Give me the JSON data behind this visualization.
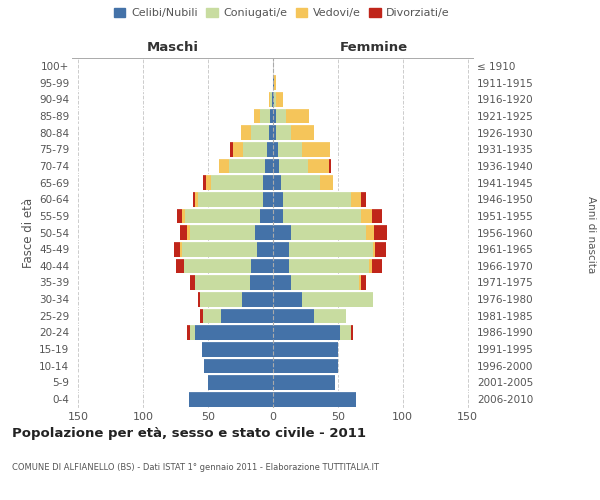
{
  "age_groups": [
    "0-4",
    "5-9",
    "10-14",
    "15-19",
    "20-24",
    "25-29",
    "30-34",
    "35-39",
    "40-44",
    "45-49",
    "50-54",
    "55-59",
    "60-64",
    "65-69",
    "70-74",
    "75-79",
    "80-84",
    "85-89",
    "90-94",
    "95-99",
    "100+"
  ],
  "birth_years": [
    "2006-2010",
    "2001-2005",
    "1996-2000",
    "1991-1995",
    "1986-1990",
    "1981-1985",
    "1976-1980",
    "1971-1975",
    "1966-1970",
    "1961-1965",
    "1956-1960",
    "1951-1955",
    "1946-1950",
    "1941-1945",
    "1936-1940",
    "1931-1935",
    "1926-1930",
    "1921-1925",
    "1916-1920",
    "1911-1915",
    "≤ 1910"
  ],
  "maschi": {
    "celibi": [
      65,
      50,
      53,
      55,
      60,
      40,
      24,
      18,
      17,
      12,
      14,
      10,
      8,
      8,
      6,
      5,
      3,
      2,
      1,
      0,
      0
    ],
    "coniugati": [
      0,
      0,
      0,
      0,
      4,
      14,
      32,
      42,
      52,
      58,
      50,
      58,
      50,
      40,
      28,
      18,
      14,
      8,
      1,
      0,
      0
    ],
    "vedovi": [
      0,
      0,
      0,
      0,
      0,
      0,
      0,
      0,
      0,
      2,
      2,
      2,
      2,
      4,
      8,
      8,
      8,
      5,
      1,
      0,
      0
    ],
    "divorziati": [
      0,
      0,
      0,
      0,
      2,
      2,
      2,
      4,
      6,
      4,
      6,
      4,
      2,
      2,
      0,
      2,
      0,
      0,
      0,
      0,
      0
    ]
  },
  "femmine": {
    "nubili": [
      64,
      48,
      50,
      50,
      52,
      32,
      22,
      14,
      12,
      12,
      14,
      8,
      8,
      6,
      5,
      4,
      2,
      2,
      1,
      1,
      0
    ],
    "coniugate": [
      0,
      0,
      0,
      0,
      8,
      24,
      55,
      52,
      62,
      65,
      58,
      60,
      52,
      30,
      22,
      18,
      12,
      8,
      1,
      0,
      0
    ],
    "vedove": [
      0,
      0,
      0,
      0,
      0,
      0,
      0,
      2,
      2,
      2,
      6,
      8,
      8,
      10,
      16,
      22,
      18,
      18,
      6,
      1,
      0
    ],
    "divorziate": [
      0,
      0,
      0,
      0,
      2,
      0,
      0,
      4,
      8,
      8,
      10,
      8,
      4,
      0,
      2,
      0,
      0,
      0,
      0,
      0,
      0
    ]
  },
  "colors": {
    "celibi_nubili": "#4472a8",
    "coniugati": "#c8dca0",
    "vedovi": "#f5c55a",
    "divorziati": "#c0251a"
  },
  "xlim": 155,
  "title": "Popolazione per età, sesso e stato civile - 2011",
  "subtitle": "COMUNE DI ALFIANELLO (BS) - Dati ISTAT 1° gennaio 2011 - Elaborazione TUTTITALIA.IT",
  "xlabel_left": "Maschi",
  "xlabel_right": "Femmine",
  "ylabel": "Fasce di età",
  "ylabel_right": "Anni di nascita",
  "background_color": "#ffffff",
  "grid_color": "#cccccc"
}
